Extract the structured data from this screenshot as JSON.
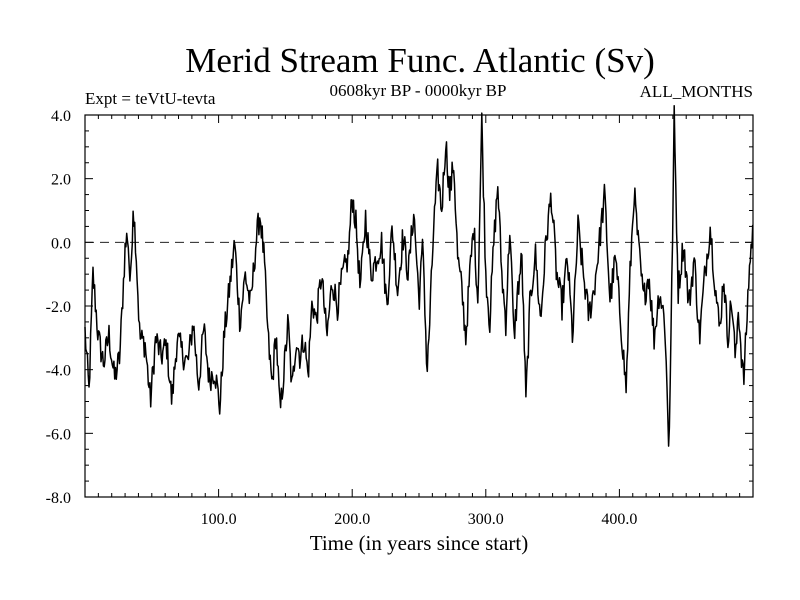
{
  "chart_data": {
    "type": "line",
    "title": "Merid Stream Func. Atlantic (Sv)",
    "subtitle_left": "Expt = teVtU-tevta",
    "subtitle_center": "0608kyr BP - 0000kyr BP",
    "subtitle_right": "ALL_MONTHS",
    "xlabel": "Time (in years since start)",
    "ylabel": "",
    "xlim": [
      0,
      500
    ],
    "ylim": [
      -8,
      4
    ],
    "x_ticks": [
      100,
      200,
      300,
      400
    ],
    "x_tick_labels": [
      "100.0",
      "200.0",
      "300.0",
      "400.0"
    ],
    "y_ticks": [
      4,
      2,
      0,
      -2,
      -4,
      -6,
      -8
    ],
    "y_tick_labels": [
      "4.0",
      "2.0",
      "0.0",
      "-2.0",
      "-4.0",
      "-6.0",
      "-8.0"
    ],
    "zero_line": "dashed",
    "grid": false,
    "legend": "none",
    "line_color": "#000000",
    "anchors": [
      [
        0,
        -2.8
      ],
      [
        3,
        -4.7
      ],
      [
        6,
        -1.0
      ],
      [
        10,
        -3.0
      ],
      [
        14,
        -3.8
      ],
      [
        18,
        -2.9
      ],
      [
        22,
        -4.3
      ],
      [
        26,
        -3.6
      ],
      [
        30,
        -0.2
      ],
      [
        32,
        0.3
      ],
      [
        34,
        -1.5
      ],
      [
        36,
        1.2
      ],
      [
        38,
        0.0
      ],
      [
        41,
        -3.0
      ],
      [
        45,
        -3.2
      ],
      [
        49,
        -5.0
      ],
      [
        53,
        -3.0
      ],
      [
        57,
        -3.6
      ],
      [
        61,
        -3.2
      ],
      [
        65,
        -5.0
      ],
      [
        69,
        -3.0
      ],
      [
        73,
        -3.5
      ],
      [
        77,
        -3.8
      ],
      [
        81,
        -2.5
      ],
      [
        85,
        -4.5
      ],
      [
        89,
        -2.7
      ],
      [
        93,
        -4.3
      ],
      [
        97,
        -4.0
      ],
      [
        101,
        -5.2
      ],
      [
        104,
        -3.0
      ],
      [
        108,
        -1.5
      ],
      [
        112,
        0.0
      ],
      [
        116,
        -2.5
      ],
      [
        120,
        -1.0
      ],
      [
        124,
        -2.0
      ],
      [
        128,
        0.0
      ],
      [
        131,
        0.9
      ],
      [
        134,
        -0.5
      ],
      [
        137,
        -3.0
      ],
      [
        140,
        -4.5
      ],
      [
        143,
        -2.8
      ],
      [
        146,
        -5.4
      ],
      [
        149,
        -4.0
      ],
      [
        152,
        -2.5
      ],
      [
        155,
        -4.7
      ],
      [
        158,
        -3.0
      ],
      [
        161,
        -3.6
      ],
      [
        164,
        -3.0
      ],
      [
        167,
        -4.2
      ],
      [
        170,
        -1.8
      ],
      [
        173,
        -2.5
      ],
      [
        177,
        -1.0
      ],
      [
        181,
        -3.0
      ],
      [
        185,
        -1.2
      ],
      [
        189,
        -2.0
      ],
      [
        193,
        -1.0
      ],
      [
        197,
        -0.5
      ],
      [
        200,
        1.5
      ],
      [
        203,
        0.5
      ],
      [
        206,
        -1.5
      ],
      [
        210,
        0.8
      ],
      [
        214,
        -1.0
      ],
      [
        218,
        -0.5
      ],
      [
        222,
        0.0
      ],
      [
        226,
        -2.0
      ],
      [
        230,
        0.5
      ],
      [
        234,
        -1.5
      ],
      [
        238,
        0.2
      ],
      [
        242,
        -1.0
      ],
      [
        246,
        1.0
      ],
      [
        250,
        -1.8
      ],
      [
        253,
        0.0
      ],
      [
        256,
        -4.2
      ],
      [
        258,
        -2.5
      ],
      [
        261,
        0.5
      ],
      [
        264,
        2.2
      ],
      [
        267,
        1.0
      ],
      [
        270,
        3.2
      ],
      [
        273,
        1.5
      ],
      [
        276,
        2.5
      ],
      [
        279,
        -0.5
      ],
      [
        282,
        -1.5
      ],
      [
        285,
        -3.0
      ],
      [
        288,
        -1.0
      ],
      [
        291,
        0.5
      ],
      [
        294,
        -1.8
      ],
      [
        297,
        3.8
      ],
      [
        300,
        -1.0
      ],
      [
        303,
        -2.5
      ],
      [
        306,
        0.0
      ],
      [
        309,
        1.8
      ],
      [
        312,
        -1.0
      ],
      [
        315,
        -2.5
      ],
      [
        318,
        0.5
      ],
      [
        321,
        -3.0
      ],
      [
        324,
        -1.5
      ],
      [
        327,
        -0.5
      ],
      [
        330,
        -5.0
      ],
      [
        333,
        -2.0
      ],
      [
        337,
        -0.3
      ],
      [
        341,
        -2.5
      ],
      [
        345,
        0.0
      ],
      [
        349,
        1.5
      ],
      [
        353,
        -1.0
      ],
      [
        357,
        -2.0
      ],
      [
        361,
        -0.5
      ],
      [
        365,
        -3.0
      ],
      [
        369,
        0.5
      ],
      [
        373,
        -1.0
      ],
      [
        377,
        -2.3
      ],
      [
        381,
        -1.5
      ],
      [
        385,
        0.0
      ],
      [
        389,
        1.5
      ],
      [
        393,
        -1.8
      ],
      [
        397,
        -0.5
      ],
      [
        401,
        -2.5
      ],
      [
        405,
        -4.6
      ],
      [
        408,
        -1.0
      ],
      [
        411,
        1.6
      ],
      [
        414,
        0.0
      ],
      [
        418,
        -1.8
      ],
      [
        422,
        -1.0
      ],
      [
        426,
        -3.0
      ],
      [
        430,
        -1.5
      ],
      [
        434,
        -2.5
      ],
      [
        437,
        -6.5
      ],
      [
        439,
        -2.0
      ],
      [
        441,
        3.9
      ],
      [
        444,
        -1.5
      ],
      [
        448,
        0.0
      ],
      [
        452,
        -2.0
      ],
      [
        456,
        -0.5
      ],
      [
        460,
        -3.0
      ],
      [
        464,
        -1.0
      ],
      [
        468,
        0.5
      ],
      [
        472,
        -1.5
      ],
      [
        475,
        -2.8
      ],
      [
        478,
        -1.0
      ],
      [
        481,
        -3.0
      ],
      [
        484,
        -1.8
      ],
      [
        487,
        -3.8
      ],
      [
        489,
        -2.0
      ],
      [
        491,
        -3.3
      ],
      [
        493,
        -4.4
      ],
      [
        495,
        -2.8
      ],
      [
        497,
        -1.0
      ],
      [
        499,
        0.0
      ],
      [
        500,
        0.5
      ]
    ]
  }
}
